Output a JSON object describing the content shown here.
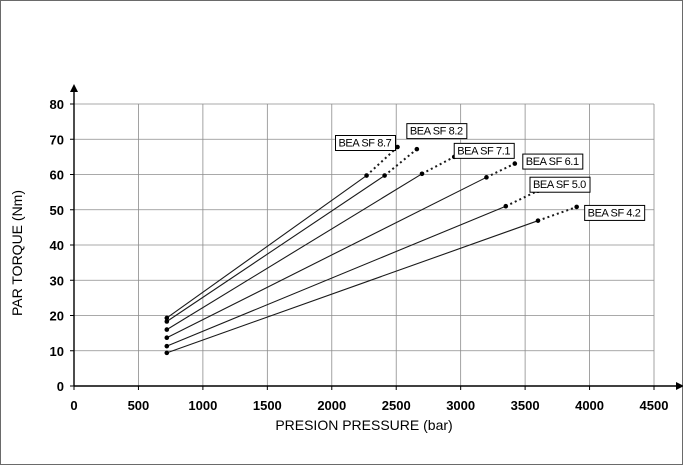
{
  "chart_data": {
    "type": "line",
    "title": "",
    "xlabel": "PRESION PRESSURE (bar)",
    "ylabel": "PAR TORQUE (Nm)",
    "xlim": [
      0,
      4500
    ],
    "ylim": [
      0,
      80
    ],
    "x_ticks": [
      0,
      500,
      1000,
      1500,
      2000,
      2500,
      3000,
      3500,
      4000,
      4500
    ],
    "y_ticks": [
      0,
      10,
      20,
      30,
      40,
      50,
      60,
      70,
      80
    ],
    "grid": true,
    "series": [
      {
        "name": "BEA SF 8.7",
        "solid": [
          [
            720,
            19.3
          ],
          [
            2270,
            59.7
          ]
        ],
        "dashed": [
          [
            2270,
            59.7
          ],
          [
            2510,
            67.8
          ]
        ]
      },
      {
        "name": "BEA SF 8.2",
        "solid": [
          [
            720,
            18.3
          ],
          [
            2410,
            59.7
          ]
        ],
        "dashed": [
          [
            2410,
            59.7
          ],
          [
            2660,
            67.2
          ]
        ]
      },
      {
        "name": "BEA SF 7.1",
        "solid": [
          [
            720,
            16.0
          ],
          [
            2700,
            60.2
          ]
        ],
        "dashed": [
          [
            2700,
            60.2
          ],
          [
            2950,
            65.0
          ]
        ]
      },
      {
        "name": "BEA SF 6.1",
        "solid": [
          [
            720,
            13.7
          ],
          [
            3200,
            59.2
          ]
        ],
        "dashed": [
          [
            3200,
            59.2
          ],
          [
            3420,
            63.1
          ]
        ]
      },
      {
        "name": "BEA SF 5.0",
        "solid": [
          [
            720,
            11.3
          ],
          [
            3350,
            51.0
          ]
        ],
        "dashed": [
          [
            3350,
            51.0
          ],
          [
            3600,
            55.4
          ]
        ]
      },
      {
        "name": "BEA SF 4.2",
        "solid": [
          [
            720,
            9.4
          ],
          [
            3600,
            46.9
          ]
        ],
        "dashed": [
          [
            3600,
            46.9
          ],
          [
            3900,
            50.8
          ]
        ]
      }
    ]
  }
}
